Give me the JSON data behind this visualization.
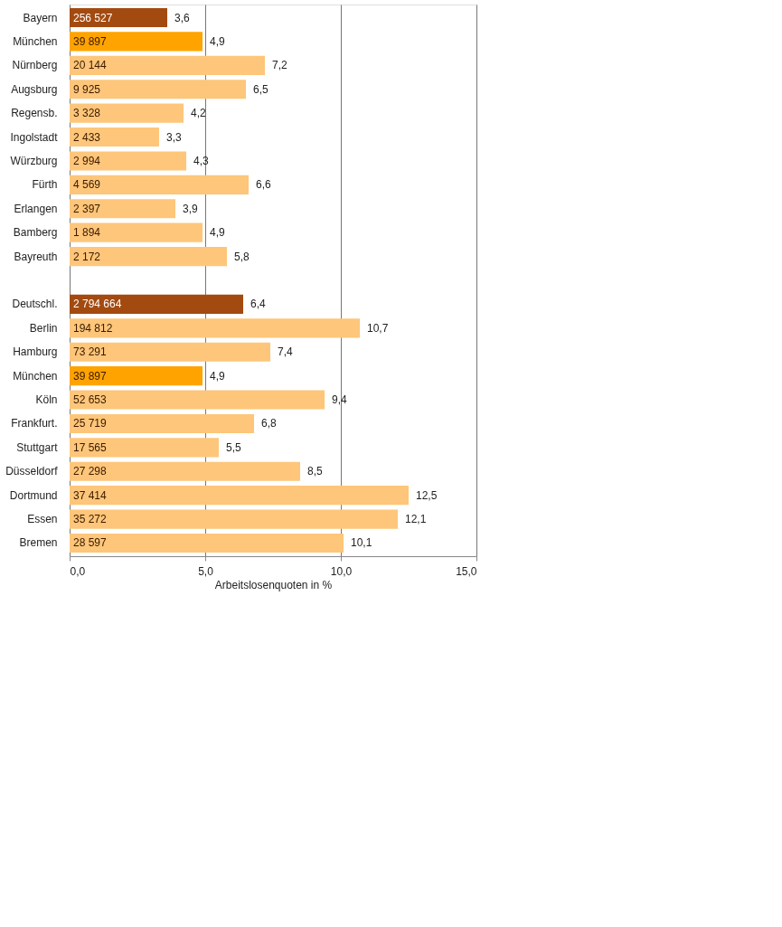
{
  "chart_data": {
    "type": "bar",
    "orientation": "horizontal",
    "xlabel": "Arbeitslosenquoten in %",
    "categories": [
      "Bayern",
      "München",
      "Nürnberg",
      "Augsburg",
      "Regensb.",
      "Ingolstadt",
      "Würzburg",
      "Fürth",
      "Erlangen",
      "Bamberg",
      "Bayreuth",
      null,
      "Deutschl.",
      "Berlin",
      "Hamburg",
      "München",
      "Köln",
      "Frankfurt.",
      "Stuttgart",
      "Düsseldorf",
      "Dortmund",
      "Essen",
      "Bremen"
    ],
    "values": [
      3.6,
      4.9,
      7.2,
      6.5,
      4.2,
      3.3,
      4.3,
      6.6,
      3.9,
      4.9,
      5.8,
      null,
      6.4,
      10.7,
      7.4,
      4.9,
      9.4,
      6.8,
      5.5,
      8.5,
      12.5,
      12.1,
      10.1
    ],
    "value_labels": [
      "3,6",
      "4,9",
      "7,2",
      "6,5",
      "4,2",
      "3,3",
      "4,3",
      "6,6",
      "3,9",
      "4,9",
      "5,8",
      null,
      "6,4",
      "10,7",
      "7,4",
      "4,9",
      "9,4",
      "6,8",
      "5,5",
      "8,5",
      "12,5",
      "12,1",
      "10,1"
    ],
    "colors": [
      "#a34a10",
      "#ffa300",
      "#fdc67a",
      "#fdc67a",
      "#fdc67a",
      "#fdc67a",
      "#fdc67a",
      "#fdc67a",
      "#fdc67a",
      "#fdc67a",
      "#fdc67a",
      null,
      "#a34a10",
      "#fdc67a",
      "#fdc67a",
      "#ffa300",
      "#fdc67a",
      "#fdc67a",
      "#fdc67a",
      "#fdc67a",
      "#fdc67a",
      "#fdc67a",
      "#fdc67a"
    ],
    "xlim": [
      0,
      15
    ],
    "xticks": [
      {
        "value": 0,
        "label": "0,0"
      },
      {
        "value": 5,
        "label": "5,0"
      },
      {
        "value": 10,
        "label": "10,0"
      },
      {
        "value": 15,
        "label": "15,0"
      }
    ],
    "grid": "x",
    "annotations": [
      "256 527",
      "39 897",
      "20 144",
      "9 925",
      "3 328",
      "2 433",
      "2 994",
      "4 569",
      "2 397",
      "1 894",
      "2 172",
      "2 794 664",
      "194 812",
      "73 291",
      "39 897",
      "52 653",
      "25 719",
      "17 565",
      "27 298",
      "37 414",
      "35 272",
      "28 597"
    ]
  }
}
